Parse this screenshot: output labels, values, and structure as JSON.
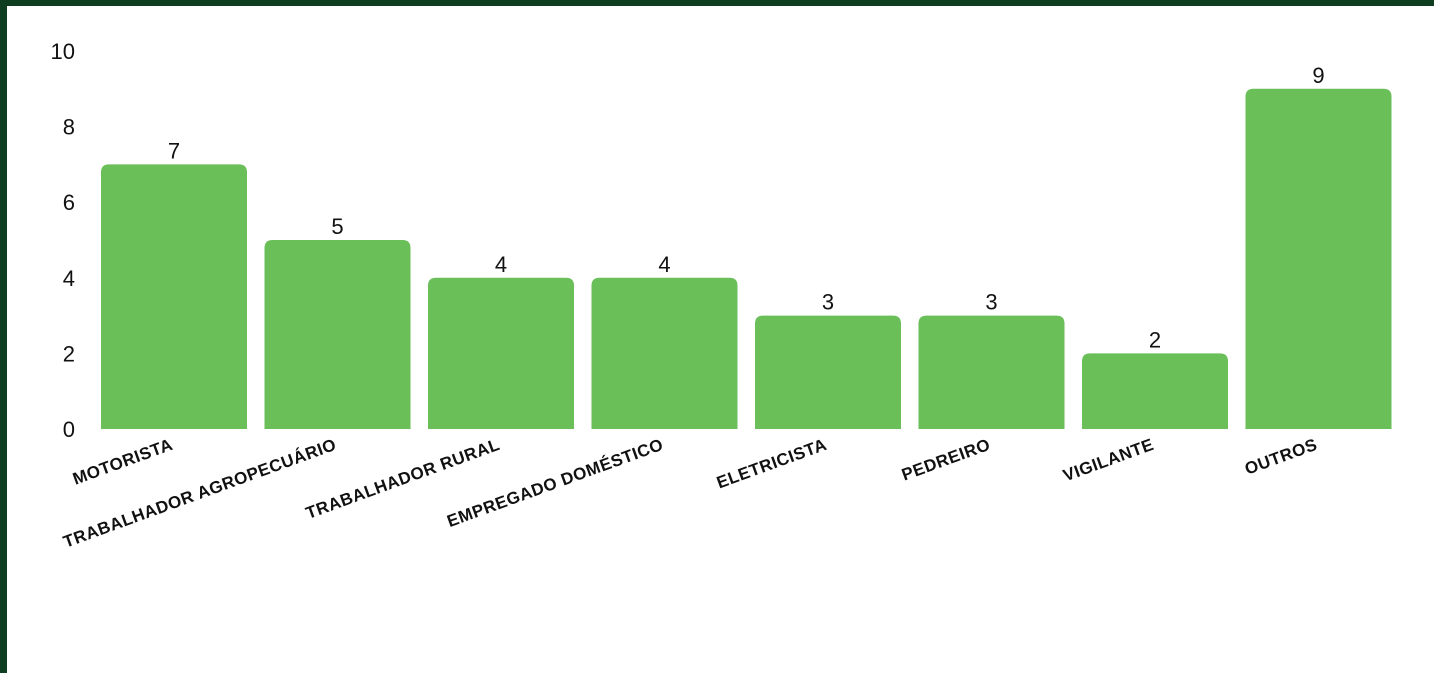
{
  "chart_data": {
    "type": "bar",
    "title": "",
    "xlabel": "",
    "ylabel": "",
    "categories": [
      "MOTORISTA",
      "TRABALHADOR AGROPECUÁRIO",
      "TRABALHADOR RURAL",
      "EMPREGADO DOMÉSTICO",
      "ELETRICISTA",
      "PEDREIRO",
      "VIGILANTE",
      "OUTROS"
    ],
    "values": [
      7,
      5,
      4,
      4,
      3,
      3,
      2,
      9
    ],
    "ylim": [
      0,
      10
    ],
    "yticks": [
      "0",
      "2",
      "4",
      "6",
      "8",
      "10"
    ],
    "grid": false,
    "legend": "none",
    "bar_color": "#6abf59",
    "frame_color": "#0f3d20"
  }
}
